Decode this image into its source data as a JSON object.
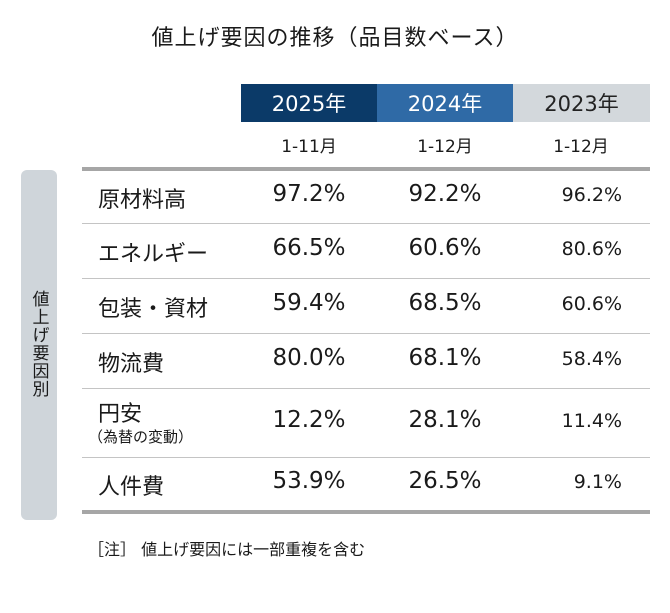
{
  "chart_data": {
    "type": "table",
    "title": "値上げ要因の推移（品目数ベース）",
    "row_group_label": "値上げ要因別",
    "columns": [
      {
        "year": "2025年",
        "period": "1-11月",
        "color": "#0b3a68"
      },
      {
        "year": "2024年",
        "period": "1-12月",
        "color": "#2f6aa6"
      },
      {
        "year": "2023年",
        "period": "1-12月",
        "color": "#d3d8dc"
      }
    ],
    "rows": [
      {
        "label": "原材料高",
        "sublabel": "",
        "values": [
          "97.2%",
          "92.2%",
          "96.2%"
        ]
      },
      {
        "label": "エネルギー",
        "sublabel": "",
        "values": [
          "66.5%",
          "60.6%",
          "80.6%"
        ]
      },
      {
        "label": "包装・資材",
        "sublabel": "",
        "values": [
          "59.4%",
          "68.5%",
          "60.6%"
        ]
      },
      {
        "label": "物流費",
        "sublabel": "",
        "values": [
          "80.0%",
          "68.1%",
          "58.4%"
        ]
      },
      {
        "label": "円安",
        "sublabel": "（為替の変動）",
        "values": [
          "12.2%",
          "28.1%",
          "11.4%"
        ]
      },
      {
        "label": "人件費",
        "sublabel": "",
        "values": [
          "53.9%",
          "26.5%",
          "9.1%"
        ]
      }
    ],
    "note": "［注］ 値上げ要因には一部重複を含む"
  }
}
